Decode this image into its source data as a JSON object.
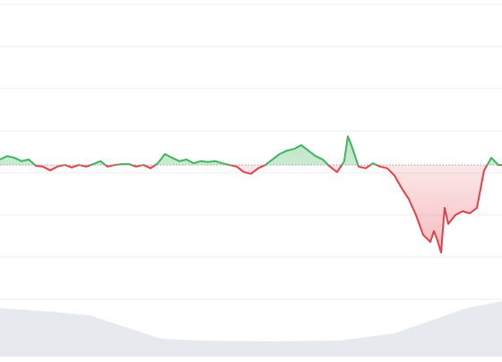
{
  "chart_data": [
    {
      "type": "line",
      "x": [
        0,
        8,
        16,
        24,
        32,
        40,
        48,
        56,
        64,
        72,
        80,
        88,
        96,
        104,
        112,
        120,
        128,
        136,
        144,
        152,
        160,
        168,
        176,
        184,
        192,
        200,
        208,
        216,
        224,
        232,
        240,
        248,
        256,
        264,
        272,
        280,
        288,
        296,
        304,
        312,
        320,
        328,
        336,
        344,
        352,
        360,
        368,
        376,
        384,
        388,
        392,
        400,
        408,
        416,
        424,
        432,
        440,
        448,
        456,
        464,
        472,
        480,
        484,
        488,
        492,
        496,
        500,
        508,
        516,
        524,
        532,
        540,
        548,
        556,
        560
      ],
      "values": [
        3.32,
        3.4,
        3.36,
        3.28,
        3.32,
        3.17,
        3.15,
        3.06,
        3.15,
        3.19,
        3.13,
        3.19,
        3.15,
        3.21,
        3.28,
        3.15,
        3.19,
        3.21,
        3.21,
        3.15,
        3.19,
        3.11,
        3.23,
        3.45,
        3.36,
        3.28,
        3.32,
        3.23,
        3.28,
        3.26,
        3.28,
        3.23,
        3.19,
        3.15,
        3.02,
        2.98,
        3.11,
        3.19,
        3.32,
        3.45,
        3.53,
        3.57,
        3.66,
        3.53,
        3.4,
        3.32,
        3.15,
        3.02,
        3.28,
        3.87,
        3.66,
        3.15,
        3.11,
        3.23,
        3.15,
        3.11,
        2.94,
        2.64,
        2.38,
        2.0,
        1.53,
        1.36,
        1.62,
        1.4,
        1.11,
        2.17,
        1.79,
        2.0,
        2.09,
        2.04,
        2.17,
        3.06,
        3.36,
        3.19,
        3.19
      ],
      "baseline": 3.19,
      "up_color": "#3fb55e",
      "down_color": "#e0424a",
      "xlim": [
        0,
        560
      ],
      "ylim": [
        0,
        7
      ],
      "yticks": [
        0,
        1,
        2,
        3,
        4,
        5,
        6,
        7
      ],
      "grid": true
    },
    {
      "type": "area",
      "x": [
        0,
        60,
        100,
        140,
        180,
        220,
        300,
        380,
        440,
        480,
        520,
        560
      ],
      "values": [
        54,
        50,
        46,
        33,
        20,
        18,
        17,
        18,
        26,
        40,
        54,
        62
      ],
      "color": "#e6e9ee",
      "xlim": [
        0,
        560
      ],
      "ylim": [
        0,
        64
      ]
    }
  ]
}
